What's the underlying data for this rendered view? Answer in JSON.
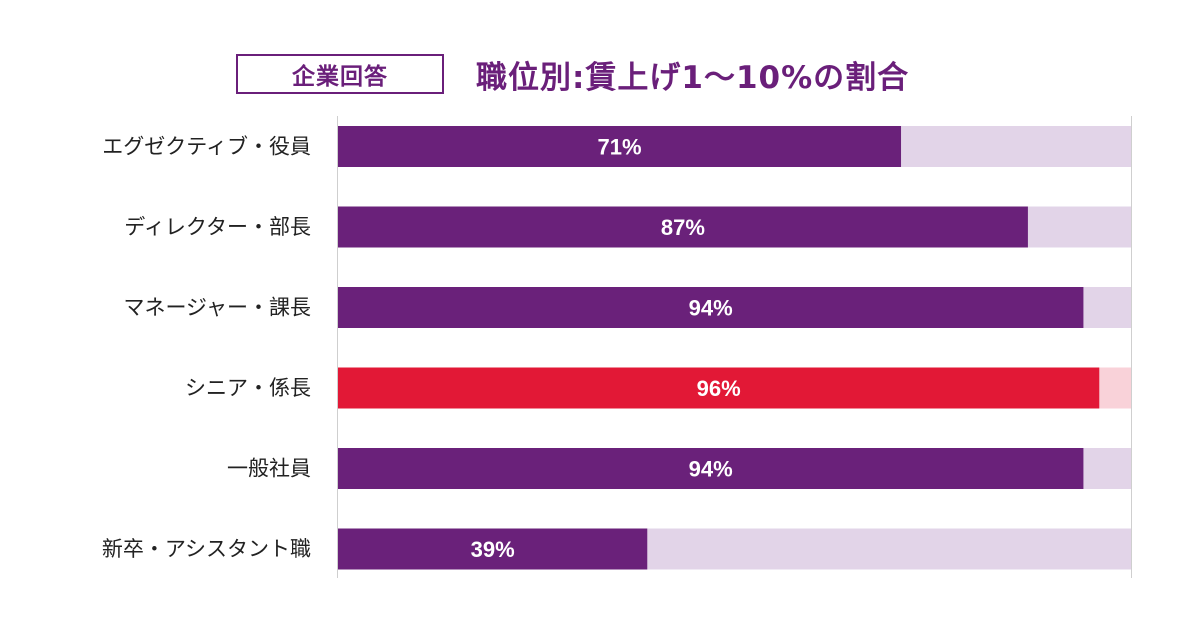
{
  "badge": "企業回答",
  "title": "職位別:賃上げ1〜10%の割合",
  "colors": {
    "bar": "#6a217a",
    "bar_bg": "#e2d4e8",
    "highlight": "#e21836",
    "highlight_bg": "#f9d2d9",
    "axis": "#cfcfcf",
    "title": "#6a1f7a"
  },
  "chart_data": {
    "type": "bar",
    "orientation": "horizontal",
    "stacked_to_100": true,
    "categories": [
      "エグゼクティブ・役員",
      "ディレクター・部長",
      "マネージャー・課長",
      "シニア・係長",
      "一般社員",
      "新卒・アシスタント職"
    ],
    "values": [
      71,
      87,
      94,
      96,
      94,
      39
    ],
    "value_labels": [
      "71%",
      "87%",
      "94%",
      "96%",
      "94%",
      "39%"
    ],
    "highlight_index": 3,
    "xlim": [
      0,
      100
    ],
    "grid": false,
    "legend": "none"
  }
}
